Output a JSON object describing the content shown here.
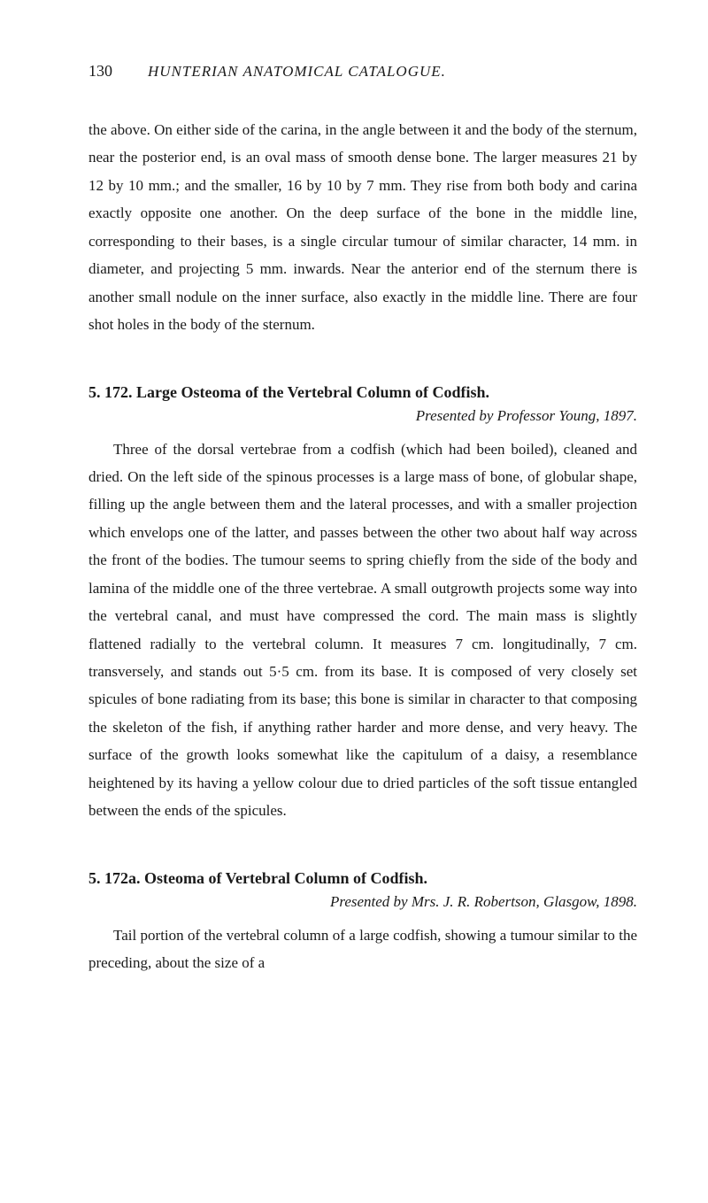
{
  "header": {
    "page_number": "130",
    "running_title": "HUNTERIAN ANATOMICAL CATALOGUE."
  },
  "top_paragraph": "the above. On either side of the carina, in the angle between it and the body of the sternum, near the posterior end, is an oval mass of smooth dense bone. The larger measures 21 by 12 by 10 mm.; and the smaller, 16 by 10 by 7 mm. They rise from both body and carina exactly opposite one another. On the deep surface of the bone in the middle line, corresponding to their bases, is a single circular tumour of similar character, 14 mm. in diameter, and projecting 5 mm. inwards. Near the anterior end of the sternum there is another small nodule on the inner surface, also exactly in the middle line. There are four shot holes in the body of the sternum.",
  "entries": [
    {
      "title": "5. 172. Large Osteoma of the Vertebral Column of Codfish.",
      "attribution": "Presented by Professor Young, 1897.",
      "paragraph": "Three of the dorsal vertebrae from a codfish (which had been boiled), cleaned and dried. On the left side of the spinous processes is a large mass of bone, of globular shape, filling up the angle between them and the lateral processes, and with a smaller projection which envelops one of the latter, and passes between the other two about half way across the front of the bodies. The tumour seems to spring chiefly from the side of the body and lamina of the middle one of the three vertebrae. A small outgrowth projects some way into the vertebral canal, and must have compressed the cord. The main mass is slightly flattened radially to the vertebral column. It measures 7 cm. longitudinally, 7 cm. transversely, and stands out 5·5 cm. from its base. It is composed of very closely set spicules of bone radiating from its base; this bone is similar in character to that composing the skeleton of the fish, if anything rather harder and more dense, and very heavy. The surface of the growth looks somewhat like the capitulum of a daisy, a resemblance heightened by its having a yellow colour due to dried particles of the soft tissue entangled between the ends of the spicules."
    },
    {
      "title": "5. 172a. Osteoma of Vertebral Column of Codfish.",
      "attribution": "Presented by Mrs. J. R. Robertson, Glasgow, 1898.",
      "paragraph": "Tail portion of the vertebral column of a large codfish, showing a tumour similar to the preceding, about the size of a"
    }
  ]
}
